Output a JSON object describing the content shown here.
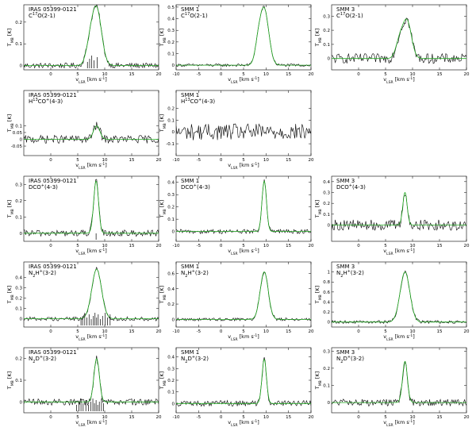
{
  "figure": {
    "xlabel": "v_LSR [km s^-1]",
    "ylabel": "T_MB [K]",
    "colors": {
      "observed": "#000000",
      "fit": "#22aa22",
      "frame": "#000000"
    }
  },
  "chart_data": [
    {
      "type": "line",
      "source": "IRAS 05399-0121",
      "line": "C17O(2-1)",
      "xlim": [
        -5,
        20
      ],
      "ylim": [
        -0.02,
        0.28
      ],
      "xticks": [
        0,
        5,
        10,
        15,
        20
      ],
      "yticks": [
        0,
        0.1,
        0.2
      ],
      "peak": 0.26,
      "center": 8.5,
      "width": 0.9,
      "shoulder": [
        7.2,
        0.07
      ],
      "noise": 0.012,
      "hfs": [
        6.8,
        7.2,
        7.6,
        8.0,
        8.6
      ]
    },
    {
      "type": "line",
      "source": "SMM 1",
      "line": "C17O(2-1)",
      "xlim": [
        -10,
        20
      ],
      "ylim": [
        -0.04,
        0.52
      ],
      "xticks": [
        -10,
        -5,
        0,
        5,
        10,
        15,
        20
      ],
      "yticks": [
        0,
        0.1,
        0.2,
        0.3,
        0.4,
        0.5
      ],
      "peak": 0.48,
      "center": 9.6,
      "width": 1.0,
      "shoulder": [
        8.2,
        0.12
      ],
      "noise": 0.012,
      "hfs": []
    },
    {
      "type": "line",
      "source": "SMM 3",
      "line": "C17O(2-1)",
      "xlim": [
        -5,
        20
      ],
      "ylim": [
        -0.08,
        0.38
      ],
      "xticks": [
        0,
        5,
        10,
        15,
        20
      ],
      "yticks": [
        0,
        0.1,
        0.2,
        0.3
      ],
      "peak": 0.26,
      "center": 9.0,
      "width": 0.8,
      "shoulder": [
        7.6,
        0.12
      ],
      "noise": 0.035,
      "hfs": []
    },
    {
      "type": "line",
      "source": "IRAS 05399-0121",
      "line": "H13CO+(4-3)",
      "xlim": [
        -5,
        20
      ],
      "ylim": [
        -0.12,
        0.36
      ],
      "xticks": [
        0,
        5,
        10,
        15,
        20
      ],
      "yticks": [
        -0.05,
        0,
        0.05,
        0.1
      ],
      "peak": 0.1,
      "center": 8.5,
      "width": 0.6,
      "shoulder": null,
      "noise": 0.03,
      "hfs": []
    },
    {
      "type": "line",
      "source": "SMM 1",
      "line": "H13CO+(4-3)",
      "xlim": [
        -10,
        20
      ],
      "ylim": [
        -0.2,
        0.35
      ],
      "xticks": [
        -10,
        -5,
        0,
        5,
        10,
        15,
        20
      ],
      "yticks": [
        -0.1,
        0,
        0.1,
        0.2
      ],
      "peak": 0.0,
      "center": 9.5,
      "width": 0.7,
      "shoulder": null,
      "noise": 0.07,
      "hfs": []
    },
    null,
    {
      "type": "line",
      "source": "IRAS 05399-0121",
      "line": "DCO+(4-3)",
      "xlim": [
        -5,
        20
      ],
      "ylim": [
        -0.05,
        0.35
      ],
      "xticks": [
        0,
        5,
        10,
        15,
        20
      ],
      "yticks": [
        0,
        0.1,
        0.2,
        0.3
      ],
      "peak": 0.32,
      "center": 8.4,
      "width": 0.45,
      "shoulder": null,
      "noise": 0.02,
      "hfs": [
        8.4
      ]
    },
    {
      "type": "line",
      "source": "SMM 1",
      "line": "DCO+(4-3)",
      "xlim": [
        -10,
        20
      ],
      "ylim": [
        -0.08,
        0.45
      ],
      "xticks": [
        -10,
        -5,
        0,
        5,
        10,
        15,
        20
      ],
      "yticks": [
        0,
        0.1,
        0.2,
        0.3,
        0.4
      ],
      "peak": 0.41,
      "center": 9.6,
      "width": 0.5,
      "shoulder": null,
      "noise": 0.018,
      "hfs": []
    },
    {
      "type": "line",
      "source": "SMM 3",
      "line": "DCO+(4-3)",
      "xlim": [
        -5,
        20
      ],
      "ylim": [
        -0.15,
        0.45
      ],
      "xticks": [
        0,
        5,
        10,
        15,
        20
      ],
      "yticks": [
        0,
        0.1,
        0.2,
        0.3,
        0.4
      ],
      "peak": 0.3,
      "center": 8.6,
      "width": 0.4,
      "shoulder": null,
      "noise": 0.05,
      "hfs": []
    },
    {
      "type": "line",
      "source": "IRAS 05399-0121",
      "line": "N2H+(3-2)",
      "xlim": [
        -5,
        20
      ],
      "ylim": [
        -0.08,
        0.55
      ],
      "xticks": [
        0,
        5,
        10,
        15,
        20
      ],
      "yticks": [
        0,
        0.1,
        0.2,
        0.3,
        0.4
      ],
      "peak": 0.48,
      "center": 8.5,
      "width": 0.9,
      "shoulder": null,
      "noise": 0.02,
      "hfs": [
        5.6,
        5.9,
        6.3,
        6.7,
        7.1,
        7.5,
        7.9,
        8.2,
        8.5,
        8.8,
        9.2,
        9.6,
        10.1,
        10.5,
        11.0
      ]
    },
    {
      "type": "line",
      "source": "SMM 1",
      "line": "N2H+(3-2)",
      "xlim": [
        -10,
        20
      ],
      "ylim": [
        -0.1,
        0.75
      ],
      "xticks": [
        -10,
        -5,
        0,
        5,
        10,
        15,
        20
      ],
      "yticks": [
        0,
        0.2,
        0.4,
        0.6
      ],
      "peak": 0.62,
      "center": 9.6,
      "width": 0.9,
      "shoulder": null,
      "noise": 0.02,
      "hfs": []
    },
    {
      "type": "line",
      "source": "SMM 3",
      "line": "N2H+(3-2)",
      "xlim": [
        -5,
        20
      ],
      "ylim": [
        -0.1,
        1.2
      ],
      "xticks": [
        0,
        5,
        10,
        15,
        20
      ],
      "yticks": [
        0,
        0.2,
        0.4,
        0.6,
        0.8,
        1.0
      ],
      "peak": 1.0,
      "center": 8.6,
      "width": 0.9,
      "shoulder": null,
      "noise": 0.03,
      "hfs": []
    },
    {
      "type": "line",
      "source": "IRAS 05399-0121",
      "line": "N2D+(3-2)",
      "xlim": [
        -5,
        20
      ],
      "ylim": [
        -0.05,
        0.25
      ],
      "xticks": [
        0,
        5,
        10,
        15,
        20
      ],
      "yticks": [
        0,
        0.1,
        0.2
      ],
      "peak": 0.2,
      "center": 8.5,
      "width": 0.5,
      "shoulder": null,
      "noise": 0.015,
      "hfs": [
        4.8,
        5.2,
        5.6,
        6.0,
        6.5,
        7.0,
        7.4,
        7.8,
        8.1,
        8.4,
        8.7,
        9.0,
        9.4,
        9.8
      ]
    },
    {
      "type": "line",
      "source": "SMM 1",
      "line": "N2D+(3-2)",
      "xlim": [
        -10,
        20
      ],
      "ylim": [
        -0.08,
        0.48
      ],
      "xticks": [
        -10,
        -5,
        0,
        5,
        10,
        15,
        20
      ],
      "yticks": [
        0,
        0.1,
        0.2,
        0.3,
        0.4
      ],
      "peak": 0.38,
      "center": 9.6,
      "width": 0.5,
      "shoulder": null,
      "noise": 0.025,
      "hfs": []
    },
    {
      "type": "line",
      "source": "SMM 3",
      "line": "N2D+(3-2)",
      "xlim": [
        -5,
        20
      ],
      "ylim": [
        -0.06,
        0.32
      ],
      "xticks": [
        0,
        5,
        10,
        15,
        20
      ],
      "yticks": [
        0,
        0.1,
        0.2,
        0.3
      ],
      "peak": 0.24,
      "center": 8.6,
      "width": 0.45,
      "shoulder": null,
      "noise": 0.02,
      "hfs": []
    }
  ]
}
